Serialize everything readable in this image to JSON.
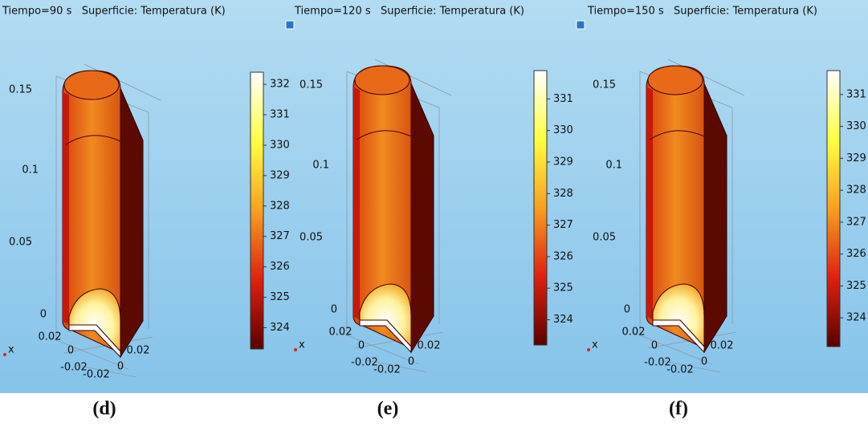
{
  "panels": [
    {
      "title": "Tiempo=90 s   Superficie: Temperatura (K)",
      "axis_labels": [
        "0.15",
        "0.1",
        "0.05",
        "0",
        "0.02",
        "0",
        "-0.02",
        "-0.02",
        "0",
        "0.02"
      ],
      "x_label": "x",
      "colorbar": {
        "range": [
          323.3,
          332.4
        ],
        "ticks": [
          332,
          331,
          330,
          329,
          328,
          327,
          326,
          325,
          324
        ]
      },
      "caption": "(d)"
    },
    {
      "title": "Tiempo=120 s   Superficie: Temperatura (K)",
      "axis_labels": [
        "0.15",
        "0.1",
        "0.05",
        "0",
        "0.02",
        "0",
        "-0.02",
        "-0.02",
        "0",
        "0.02"
      ],
      "x_label": "x",
      "colorbar": {
        "range": [
          323.2,
          331.9
        ],
        "ticks": [
          331,
          330,
          329,
          328,
          327,
          326,
          325,
          324
        ]
      },
      "caption": "(e)"
    },
    {
      "title": "Tiempo=150 s   Superficie: Temperatura (K)",
      "axis_labels": [
        "0.15",
        "0.1",
        "0.05",
        "0",
        "0.02",
        "0",
        "-0.02",
        "-0.02",
        "0",
        "0.02"
      ],
      "x_label": "x",
      "colorbar": {
        "range": [
          323.1,
          331.75
        ],
        "ticks": [
          331,
          330,
          329,
          328,
          327,
          326,
          325,
          324
        ]
      },
      "caption": "(f)"
    }
  ]
}
